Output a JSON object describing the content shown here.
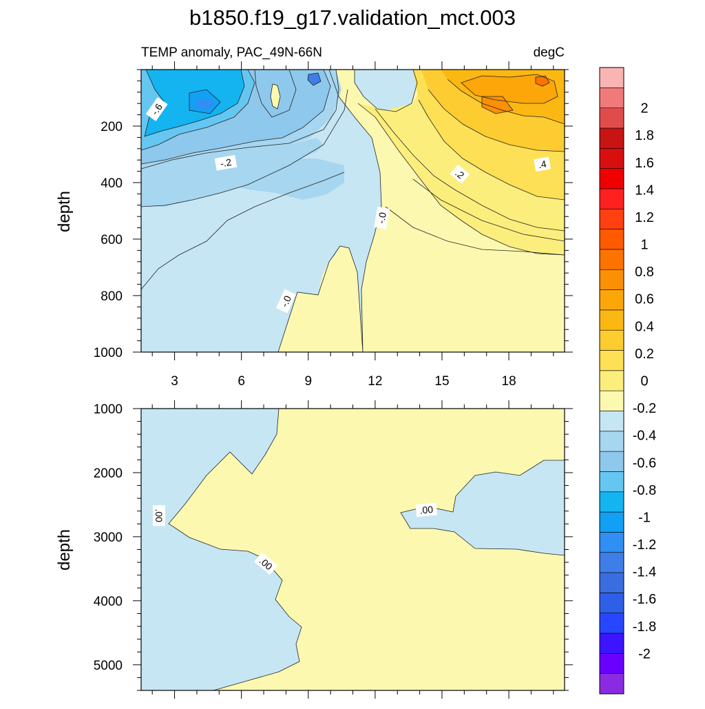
{
  "title": "b1850.f19_g17.validation_mct.003",
  "colors": {
    "cbar": [
      "#8a2be2",
      "#6a00ff",
      "#3c14ff",
      "#2846ff",
      "#2e5fe8",
      "#3a6ee0",
      "#3f7ee8",
      "#2f8ff2",
      "#12a0f5",
      "#14b4f0",
      "#66c6f2",
      "#8ec8ec",
      "#a6d6f0",
      "#c6e6f4",
      "#fcf8b0",
      "#fcee7c",
      "#fde055",
      "#fdcc30",
      "#fbb812",
      "#fca60a",
      "#fc9004",
      "#fc7300",
      "#fe5a00",
      "#ff4010",
      "#ff2020",
      "#f00000",
      "#d80f0f",
      "#c81414",
      "#e04c4c",
      "#f07a7a",
      "#fab4b4"
    ],
    "zero_pos": "#fcf8b0",
    "zero_neg": "#c6e6f4",
    "axis": "#000000",
    "contour": "#222222"
  },
  "colorbar": {
    "tick_labels": [
      "2",
      "1.8",
      "1.6",
      "1.4",
      "1.2",
      "1",
      "0.8",
      "0.6",
      "0.4",
      "0.2",
      "0",
      "-0.2",
      "-0.4",
      "-0.6",
      "-0.8",
      "-1",
      "-1.2",
      "-1.4",
      "-1.6",
      "-1.8",
      "-2"
    ]
  },
  "chart_data": [
    {
      "type": "contour",
      "left_title": "TEMP anomaly, PAC_49N-66N",
      "right_title": "degC",
      "xlabel": "",
      "ylabel": "depth",
      "xlim": [
        1.5,
        20.5
      ],
      "ylim": [
        0,
        1000
      ],
      "x_ticks": [
        3,
        6,
        9,
        12,
        15,
        18
      ],
      "x_tick_labels": [
        "3",
        "6",
        "9",
        "12",
        "15",
        "18"
      ],
      "y_ticks": [
        200,
        400,
        600,
        800,
        1000
      ],
      "y_tick_labels": [
        "200",
        "400",
        "600",
        "800",
        "1000"
      ],
      "contour_labels": [
        {
          "text": "-.6",
          "x": 2.2,
          "y": 140,
          "rot": -55
        },
        {
          "text": "-.2",
          "x": 5.3,
          "y": 330,
          "rot": -10
        },
        {
          "text": "-.0",
          "x": 12.3,
          "y": 525,
          "rot": -80
        },
        {
          "text": "-.0",
          "x": 8.0,
          "y": 820,
          "rot": -65
        },
        {
          "text": ".2",
          "x": 15.8,
          "y": 370,
          "rot": 40
        },
        {
          "text": ".4",
          "x": 19.5,
          "y": 335,
          "rot": -10
        }
      ]
    },
    {
      "type": "contour",
      "xlabel": "",
      "ylabel": "depth",
      "xlim": [
        1.5,
        20.5
      ],
      "ylim": [
        1000,
        5400
      ],
      "x_ticks": [
        3,
        6,
        9,
        12,
        15,
        18
      ],
      "y_ticks": [
        1000,
        2000,
        3000,
        4000,
        5000
      ],
      "y_tick_labels": [
        "1000",
        "2000",
        "3000",
        "4000",
        "5000"
      ],
      "contour_labels": [
        {
          "text": ".00",
          "x": 2.3,
          "y": 2670,
          "rot": 90
        },
        {
          "text": ".00",
          "x": 7.1,
          "y": 3420,
          "rot": 40
        },
        {
          "text": ".00",
          "x": 14.3,
          "y": 2580,
          "rot": -5
        }
      ]
    }
  ]
}
